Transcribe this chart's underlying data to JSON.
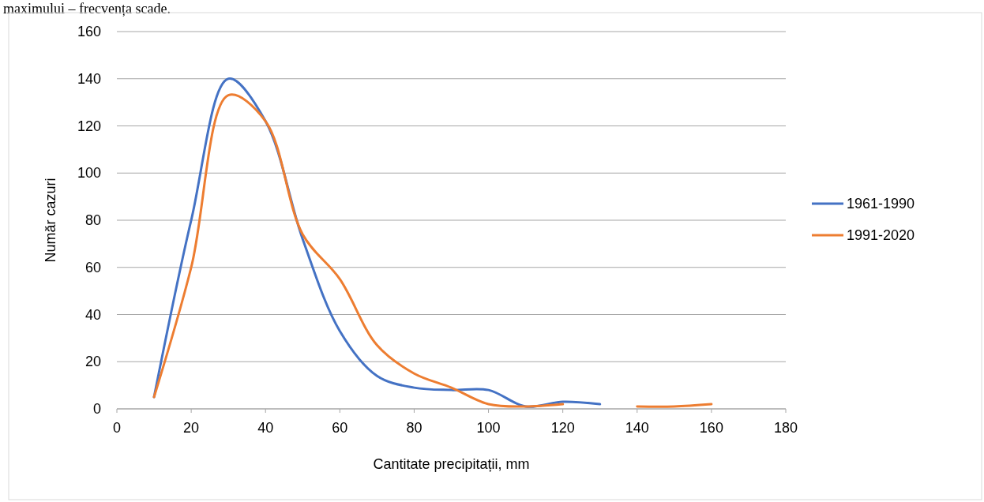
{
  "chart_data": {
    "type": "line",
    "xlabel": "Cantitate precipitații, mm",
    "ylabel": "Număr cazuri",
    "annotations": [
      "maximului – frecvența scade."
    ],
    "x": [
      10,
      20,
      30,
      40,
      50,
      60,
      70,
      80,
      90,
      100,
      110,
      120,
      130,
      140,
      150,
      160
    ],
    "xlim": [
      0,
      180
    ],
    "xticks": [
      0,
      20,
      40,
      60,
      80,
      100,
      120,
      140,
      160,
      180
    ],
    "ylim": [
      0,
      160
    ],
    "yticks": [
      0,
      20,
      40,
      60,
      80,
      100,
      120,
      140,
      160
    ],
    "grid": "y",
    "legend": "right",
    "marker": "none",
    "line_style": "solid",
    "series": [
      {
        "name": "1961-1990",
        "color": "#4472c4",
        "values": [
          5,
          80,
          140,
          122,
          72,
          33,
          14,
          9,
          8,
          8,
          1,
          3,
          2,
          null,
          null,
          null
        ]
      },
      {
        "name": "1991-2020",
        "color": "#ed7d31",
        "values": [
          5,
          60,
          133,
          122,
          74,
          55,
          27,
          15,
          9,
          2,
          1,
          2,
          null,
          1,
          1,
          2
        ]
      }
    ]
  }
}
